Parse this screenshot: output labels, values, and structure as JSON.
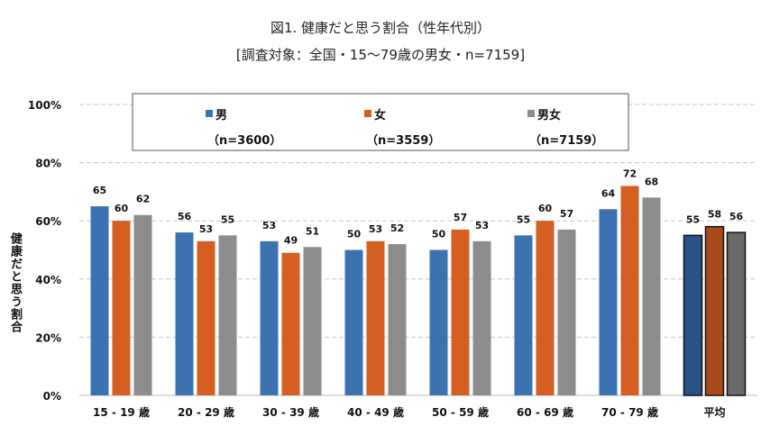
{
  "chart_data": {
    "type": "bar",
    "title": "図1. 健康だと思う割合（性年代別）",
    "subtitle": "[調査対象：全国・15～79歳の男女・n=7159]",
    "ylabel": "健康だと思う割合",
    "xlabel": "",
    "ylim": [
      0,
      100
    ],
    "yticks": [
      "0%",
      "20%",
      "40%",
      "60%",
      "80%",
      "100%"
    ],
    "grid": true,
    "legend_position": "top-center",
    "categories": [
      "15 - 19 歳",
      "20 - 29 歳",
      "30 - 39 歳",
      "40 - 49 歳",
      "50 - 59 歳",
      "60 - 69 歳",
      "70 - 79 歳",
      "平均"
    ],
    "series": [
      {
        "name": "男",
        "n_label": "（n=3600）",
        "color": "#3d72b0",
        "avg_color": "#2a5286",
        "values": [
          65,
          56,
          53,
          50,
          50,
          55,
          64,
          55
        ]
      },
      {
        "name": "女",
        "n_label": "（n=3559）",
        "color": "#d55e22",
        "avg_color": "#a84a1a",
        "values": [
          60,
          53,
          49,
          53,
          57,
          60,
          72,
          58
        ]
      },
      {
        "name": "男女",
        "n_label": "（n=7159）",
        "color": "#8c8c8c",
        "avg_color": "#6a6a6a",
        "values": [
          62,
          55,
          51,
          52,
          53,
          57,
          68,
          56
        ]
      }
    ]
  }
}
